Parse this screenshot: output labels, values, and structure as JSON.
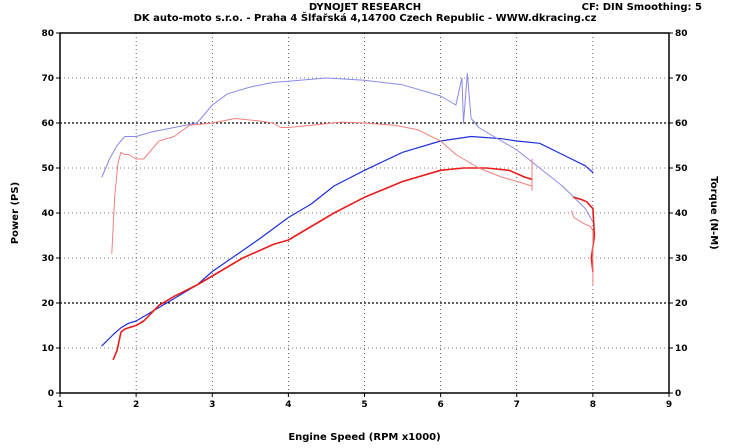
{
  "header": {
    "title": "DYNOJET RESEARCH",
    "subtitle": "DK auto-moto s.r.o. - Praha 4 Šlfařská 4,14700 Czech Republic  - WWW.dkracing.cz",
    "settings": "CF: DIN  Smoothing: 5"
  },
  "colors": {
    "blue": "#1e2fd6",
    "red": "#e81c1c",
    "light_blue": "#8a8ae6",
    "light_red": "#f08080",
    "plot_bg": "#ffffff"
  },
  "chart_data": {
    "type": "line",
    "xlabel": "Engine Speed (RPM x1000)",
    "ylabel_left": "Power (PS)",
    "ylabel_right": "Torque (N-M)",
    "xlim": [
      1,
      9
    ],
    "ylim": [
      0,
      80
    ],
    "xticks": [
      1,
      2,
      3,
      4,
      5,
      6,
      7,
      8,
      9
    ],
    "yticks": [
      0,
      10,
      20,
      30,
      40,
      50,
      60,
      70,
      80
    ],
    "grid": "dotted, heavier at 20 and 60",
    "series": [
      {
        "color": "blue",
        "width": 1.2,
        "x": [
          1.55,
          1.7,
          1.8,
          1.9,
          2.0,
          2.2,
          2.5,
          2.8,
          3.0,
          3.3,
          3.6,
          4.0,
          4.3,
          4.6,
          5.0,
          5.5,
          6.0,
          6.4,
          6.8,
          7.0,
          7.3,
          7.6,
          7.9,
          8.0
        ],
        "y": [
          10.5,
          13,
          14.5,
          15.5,
          16,
          18,
          21,
          24,
          27,
          30.5,
          34,
          39,
          42,
          46,
          49.5,
          53.5,
          56,
          57,
          56.5,
          56,
          55.5,
          53,
          50.5,
          49
        ]
      },
      {
        "color": "red",
        "width": 1.6,
        "x": [
          1.7,
          1.75,
          1.8,
          1.85,
          1.9,
          2.0,
          2.1,
          2.3,
          2.5,
          2.8,
          3.0,
          3.4,
          3.8,
          4.0,
          4.3,
          4.6,
          5.0,
          5.5,
          6.0,
          6.3,
          6.6,
          6.9,
          7.1,
          7.2
        ],
        "y": [
          7.5,
          9.5,
          13.5,
          14.2,
          14.5,
          15,
          16,
          19.5,
          21.5,
          24,
          26,
          30,
          33,
          34,
          37,
          40,
          43.5,
          47,
          49.5,
          50,
          50,
          49.5,
          48,
          47.5
        ]
      },
      {
        "color": "light_blue",
        "width": 1.0,
        "x": [
          1.55,
          1.65,
          1.75,
          1.85,
          2.0,
          2.2,
          2.5,
          2.8,
          3.0,
          3.2,
          3.5,
          3.8,
          4.0,
          4.5,
          5.0,
          5.5,
          6.0,
          6.2,
          6.28,
          6.3,
          6.35,
          6.4,
          6.5,
          6.8,
          7.0,
          7.3,
          7.6,
          7.9,
          8.0
        ],
        "y": [
          48,
          52,
          55,
          57,
          57,
          58,
          59,
          60,
          64,
          66.5,
          68,
          69,
          69.3,
          70,
          69.5,
          68.5,
          66,
          64,
          70,
          60,
          71,
          61,
          59,
          56,
          54,
          50,
          46,
          41,
          38
        ]
      },
      {
        "color": "light_red",
        "width": 1.0,
        "x": [
          1.68,
          1.72,
          1.76,
          1.8,
          1.85,
          1.9,
          2.0,
          2.1,
          2.3,
          2.5,
          2.7,
          3.0,
          3.3,
          3.6,
          3.8,
          3.9,
          4.0,
          4.3,
          4.7,
          5.0,
          5.4,
          5.7,
          6.0,
          6.2,
          6.5,
          6.8,
          7.0,
          7.2,
          7.2,
          7.2
        ],
        "y": [
          31,
          44,
          51,
          53.5,
          53,
          53,
          52,
          52,
          56,
          57,
          59.5,
          60,
          61,
          60.5,
          60,
          59,
          59,
          59.5,
          60.2,
          60,
          59.5,
          58.5,
          56,
          53,
          50,
          48,
          47,
          46,
          45,
          52
        ]
      },
      {
        "color": "red",
        "width": 1.6,
        "x": [
          7.75,
          7.85,
          7.92,
          7.97,
          8.0,
          8.02,
          7.98,
          8.0
        ],
        "y": [
          43.5,
          43,
          42.5,
          41.5,
          41,
          35,
          30,
          27
        ]
      },
      {
        "color": "light_red",
        "width": 1.0,
        "x": [
          7.72,
          7.75,
          7.8,
          7.9,
          7.97,
          8.0,
          8.0
        ],
        "y": [
          40.5,
          39,
          38.5,
          37.5,
          37,
          36,
          24
        ]
      }
    ]
  }
}
